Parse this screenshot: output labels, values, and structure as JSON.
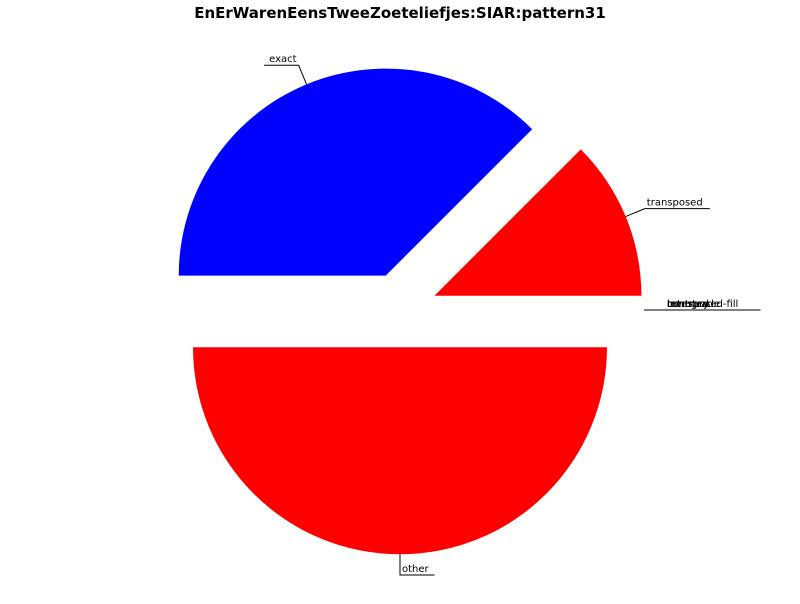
{
  "chart_data": {
    "type": "pie",
    "title": "EnErWarenEensTweeZoeteliefjes:SIAR:pattern31",
    "slices": [
      {
        "label": "other",
        "value": 50,
        "color": "#ff0000",
        "exploded": true
      },
      {
        "label": "exact",
        "value": 37.5,
        "color": "#0000ff",
        "exploded": true
      },
      {
        "label": "transposed",
        "value": 12.5,
        "color": "#ff0000",
        "exploded": true
      },
      {
        "label": "transposed-fill",
        "value": 0,
        "color": "#ff0000",
        "exploded": true
      },
      {
        "label": "inverted",
        "value": 0,
        "color": "#ff0000",
        "exploded": true
      },
      {
        "label": "retrograde",
        "value": 0,
        "color": "#ff0000",
        "exploded": true
      },
      {
        "label": "contrary",
        "value": 0,
        "color": "#ff0000",
        "exploded": true
      }
    ],
    "start_angle": "east",
    "direction": "clockwise",
    "legend": "none"
  }
}
